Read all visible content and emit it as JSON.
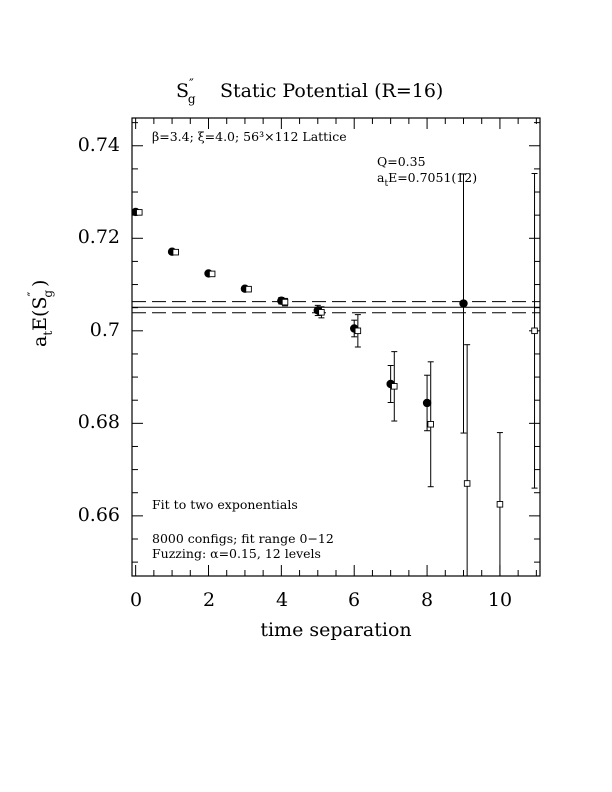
{
  "chart_data": {
    "type": "scatter",
    "title": {
      "symbol": "S",
      "sup": "″",
      "sub": "g",
      "text": "Static Potential (R=16)"
    },
    "xlabel": "time separation",
    "ylabel": {
      "prefix": "a",
      "prefix_sub": "t",
      "main": "E(S",
      "sup": "″",
      "sub": "g",
      "close": ")"
    },
    "xlim": [
      -0.1,
      11.1
    ],
    "ylim": [
      0.647,
      0.746
    ],
    "x_ticks": [
      0,
      2,
      4,
      6,
      8,
      10
    ],
    "x_tick_labels": [
      "0",
      "2",
      "4",
      "6",
      "8",
      "10"
    ],
    "y_ticks": [
      0.66,
      0.68,
      0.7,
      0.72,
      0.74
    ],
    "y_tick_labels": [
      "0.66",
      "0.68",
      "0.7",
      "0.72",
      "0.74"
    ],
    "x_minor_step": 0.5,
    "y_minor_step": 0.005,
    "annotations": {
      "lattice": "β=3.4; ξ=4.0; 56³×112 Lattice",
      "q_value": "Q=0.35",
      "energy_prefix": "a",
      "energy_prefix_sub": "t",
      "energy_value": "E=0.7051(12)",
      "fit_type": "Fit to two exponentials",
      "configs": "8000 configs; fit range 0−12",
      "fuzzing": "Fuzzing: α=0.15, 12 levels"
    },
    "fit": {
      "value": 0.7051,
      "error": 0.0012,
      "x_range": [
        -0.1,
        11.1
      ]
    },
    "series": [
      {
        "marker": "filled-circle",
        "points": [
          {
            "x": 0,
            "y": 0.7257,
            "err": 0.0002
          },
          {
            "x": 1,
            "y": 0.7171,
            "err": 0.0003
          },
          {
            "x": 2,
            "y": 0.7124,
            "err": 0.0004
          },
          {
            "x": 3,
            "y": 0.7091,
            "err": 0.0005
          },
          {
            "x": 4,
            "y": 0.7065,
            "err": 0.0007
          },
          {
            "x": 5,
            "y": 0.7044,
            "err": 0.0011
          },
          {
            "x": 6,
            "y": 0.7005,
            "err": 0.0018
          },
          {
            "x": 7,
            "y": 0.6885,
            "err": 0.004
          },
          {
            "x": 8,
            "y": 0.6844,
            "err": 0.006
          },
          {
            "x": 9,
            "y": 0.7059,
            "err": 0.028
          }
        ]
      },
      {
        "marker": "open-square",
        "points": [
          {
            "x": 0.1,
            "y": 0.7256,
            "err": 0.0002
          },
          {
            "x": 1.1,
            "y": 0.717,
            "err": 0.0003
          },
          {
            "x": 2.1,
            "y": 0.7123,
            "err": 0.0004
          },
          {
            "x": 3.1,
            "y": 0.709,
            "err": 0.0005
          },
          {
            "x": 4.1,
            "y": 0.7062,
            "err": 0.0008
          },
          {
            "x": 5.1,
            "y": 0.704,
            "err": 0.0012
          },
          {
            "x": 6.1,
            "y": 0.7,
            "err": 0.0035
          },
          {
            "x": 7.1,
            "y": 0.688,
            "err": 0.0075
          },
          {
            "x": 8.1,
            "y": 0.6798,
            "err": 0.0135
          },
          {
            "x": 9.1,
            "y": 0.667,
            "err": 0.03
          },
          {
            "x": 10,
            "y": 0.6625,
            "err": 0.0155
          },
          {
            "x": 10.95,
            "y": 0.7,
            "err": 0.034
          }
        ]
      }
    ],
    "grid": false,
    "legend": "none"
  }
}
